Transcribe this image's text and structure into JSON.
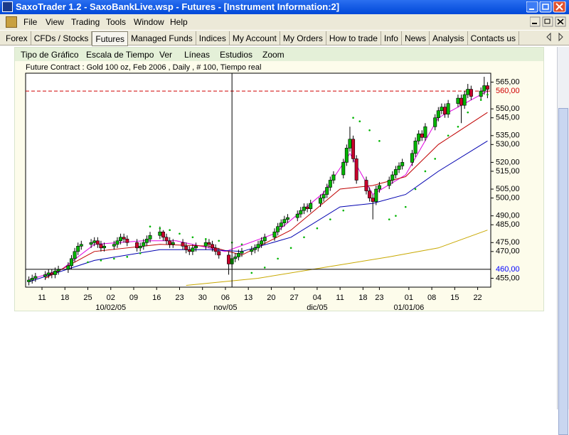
{
  "window": {
    "title": "SaxoTrader 1.2 - SaxoBankLive.wsp - Futures - [Instrument Information:2]"
  },
  "menu": [
    "File",
    "View",
    "Trading",
    "Tools",
    "Window",
    "Help"
  ],
  "tabs": [
    "Forex",
    "CFDs / Stocks",
    "Futures",
    "Managed Funds",
    "Indices",
    "My Account",
    "My Orders",
    "How to trade",
    "Info",
    "News",
    "Analysis",
    "Contacts us"
  ],
  "selected_tab": "Futures",
  "chart_menu": [
    "Tipo de Gráfico",
    "Escala de Tiempo",
    "Ver",
    "Líneas",
    "Estudios",
    "Zoom"
  ],
  "chart_data": {
    "type": "candlestick",
    "title": "Future Contract : Gold 100 oz, Feb 2006 , Daily , # 100, Tiempo real",
    "up_color": "#00b400",
    "down_color": "#c8002c",
    "x": [
      0,
      1,
      2,
      5,
      6,
      7,
      8,
      9,
      12,
      13,
      14,
      15,
      16,
      19,
      20,
      21,
      22,
      23,
      26,
      27,
      28,
      29,
      30,
      33,
      34,
      35,
      36,
      37,
      40,
      41,
      42,
      43,
      44,
      47,
      48,
      49,
      50,
      51,
      54,
      55,
      56,
      57,
      58,
      61,
      62,
      63,
      64,
      65,
      68,
      69,
      70,
      71,
      72,
      75,
      76,
      77,
      78,
      79,
      82,
      83,
      84,
      85,
      86,
      89,
      90,
      91,
      92,
      93,
      96,
      97,
      98,
      99,
      100,
      103,
      104,
      105,
      106,
      107,
      110,
      111,
      112,
      113,
      114,
      117,
      118,
      119,
      120,
      121,
      124,
      125,
      126,
      127,
      128,
      131,
      132,
      133,
      134,
      135,
      138,
      139,
      140
    ],
    "open": [
      453,
      454,
      455,
      456,
      457,
      458,
      457,
      459,
      460,
      462,
      466,
      470,
      473,
      474,
      475,
      476,
      474,
      472,
      473,
      474,
      476,
      478,
      477,
      475,
      472,
      473,
      475,
      477,
      479,
      481,
      478,
      476,
      474,
      475,
      473,
      471,
      470,
      472,
      473,
      475,
      474,
      472,
      470,
      468,
      463,
      466,
      467,
      469,
      470,
      471,
      472,
      474,
      476,
      478,
      481,
      484,
      486,
      488,
      489,
      491,
      493,
      495,
      494,
      497,
      500,
      502,
      506,
      510,
      513,
      520,
      528,
      533,
      522,
      510,
      504,
      500,
      498,
      505,
      507,
      510,
      513,
      516,
      518,
      520,
      525,
      532,
      536,
      534,
      540,
      545,
      549,
      551,
      547,
      553,
      556,
      552,
      558,
      561,
      557,
      560,
      563
    ],
    "high": [
      456,
      457,
      458,
      459,
      460,
      460,
      461,
      462,
      464,
      468,
      472,
      475,
      476,
      477,
      478,
      478,
      476,
      475,
      476,
      478,
      480,
      480,
      479,
      477,
      475,
      477,
      479,
      481,
      484,
      482,
      480,
      478,
      477,
      477,
      475,
      473,
      474,
      475,
      477,
      477,
      476,
      474,
      472,
      470,
      468,
      469,
      471,
      472,
      473,
      474,
      476,
      478,
      480,
      483,
      486,
      488,
      490,
      491,
      493,
      495,
      497,
      497,
      499,
      502,
      504,
      508,
      512,
      515,
      522,
      530,
      540,
      535,
      524,
      512,
      506,
      502,
      507,
      509,
      512,
      515,
      518,
      520,
      522,
      527,
      534,
      538,
      538,
      542,
      547,
      551,
      553,
      553,
      555,
      558,
      558,
      560,
      564,
      563,
      562,
      568,
      565
    ],
    "low": [
      451,
      452,
      453,
      454,
      455,
      455,
      455,
      457,
      458,
      460,
      464,
      468,
      471,
      472,
      473,
      472,
      470,
      470,
      471,
      472,
      474,
      475,
      473,
      470,
      470,
      471,
      473,
      475,
      477,
      476,
      474,
      472,
      472,
      471,
      469,
      468,
      468,
      470,
      471,
      472,
      470,
      468,
      466,
      457,
      461,
      464,
      465,
      467,
      468,
      469,
      470,
      472,
      474,
      476,
      479,
      482,
      484,
      486,
      487,
      489,
      491,
      492,
      492,
      495,
      498,
      500,
      504,
      508,
      511,
      518,
      526,
      520,
      508,
      502,
      498,
      488,
      496,
      503,
      505,
      508,
      511,
      514,
      516,
      518,
      523,
      530,
      532,
      532,
      538,
      543,
      547,
      545,
      545,
      551,
      542,
      550,
      556,
      555,
      555,
      558,
      556
    ],
    "close": [
      454,
      455,
      456,
      457,
      458,
      457,
      459,
      460,
      462,
      466,
      470,
      473,
      474,
      475,
      476,
      474,
      472,
      473,
      474,
      476,
      478,
      477,
      475,
      472,
      473,
      475,
      477,
      479,
      481,
      478,
      476,
      474,
      475,
      473,
      471,
      470,
      472,
      473,
      475,
      474,
      472,
      470,
      468,
      463,
      466,
      467,
      469,
      470,
      471,
      472,
      474,
      476,
      478,
      481,
      484,
      486,
      488,
      489,
      491,
      493,
      495,
      494,
      497,
      500,
      502,
      506,
      510,
      513,
      520,
      528,
      533,
      522,
      510,
      504,
      500,
      498,
      505,
      507,
      510,
      513,
      516,
      518,
      520,
      525,
      532,
      536,
      534,
      540,
      545,
      549,
      551,
      547,
      553,
      556,
      552,
      558,
      561,
      557,
      560,
      563,
      561
    ],
    "indicators": [
      {
        "color": "#e000e0",
        "x": [
          0,
          10,
          20,
          35,
          45,
          60,
          75,
          90,
          98,
          105,
          115,
          125,
          140
        ],
        "values": [
          454,
          460,
          474,
          476,
          476,
          470,
          480,
          503,
          525,
          502,
          513,
          545,
          560
        ]
      },
      {
        "color": "#c00000",
        "x": [
          5,
          20,
          40,
          55,
          65,
          80,
          95,
          105,
          115,
          125,
          140
        ],
        "values": [
          455,
          470,
          474,
          473,
          468,
          482,
          505,
          507,
          512,
          530,
          548
        ]
      },
      {
        "color": "#0000b0",
        "x": [
          0,
          20,
          40,
          55,
          65,
          80,
          95,
          105,
          115,
          125,
          140
        ],
        "values": [
          453,
          465,
          471,
          471,
          470,
          478,
          495,
          497,
          502,
          515,
          532
        ]
      },
      {
        "color": "#c8a800",
        "x": [
          48,
          70,
          90,
          110,
          125,
          140
        ],
        "values": [
          451,
          455,
          461,
          467,
          472,
          482
        ]
      }
    ],
    "sar": {
      "color": "#00b400",
      "x": [
        18,
        22,
        26,
        30,
        34,
        37,
        40,
        43,
        46,
        50,
        54,
        58,
        62,
        65,
        68,
        72,
        76,
        80,
        84,
        88,
        92,
        96,
        99,
        101,
        104,
        107,
        110,
        112,
        115,
        118,
        121,
        124,
        128,
        131,
        134,
        138,
        140
      ],
      "values": [
        464,
        465,
        466,
        467,
        469,
        484,
        483,
        482,
        480,
        478,
        477,
        476,
        475,
        474,
        458,
        461,
        466,
        472,
        478,
        483,
        488,
        493,
        545,
        543,
        538,
        532,
        488,
        490,
        495,
        505,
        515,
        522,
        535,
        540,
        548,
        555,
        558
      ]
    },
    "xlim": [
      -1,
      141
    ],
    "ylim": [
      450,
      570
    ],
    "xticks": [
      {
        "value": 4,
        "label": "11"
      },
      {
        "value": 11,
        "label": "18"
      },
      {
        "value": 18,
        "label": "25"
      },
      {
        "value": 25,
        "label": "02"
      },
      {
        "value": 32,
        "label": "09"
      },
      {
        "value": 39,
        "label": "16"
      },
      {
        "value": 46,
        "label": "23"
      },
      {
        "value": 53,
        "label": "30"
      },
      {
        "value": 60,
        "label": "06"
      },
      {
        "value": 67,
        "label": "13"
      },
      {
        "value": 74,
        "label": "20"
      },
      {
        "value": 81,
        "label": "27"
      },
      {
        "value": 88,
        "label": "04"
      },
      {
        "value": 95,
        "label": "11"
      },
      {
        "value": 102,
        "label": "18"
      },
      {
        "value": 107,
        "label": "23"
      },
      {
        "value": 116,
        "label": "01"
      },
      {
        "value": 123,
        "label": "08"
      },
      {
        "value": 130,
        "label": "15"
      },
      {
        "value": 137,
        "label": "22"
      }
    ],
    "xticks_secondary": [
      {
        "value": 25,
        "label": "10/02/05"
      },
      {
        "value": 60,
        "label": "nov/05"
      },
      {
        "value": 88,
        "label": "dic/05"
      },
      {
        "value": 116,
        "label": "01/01/06"
      }
    ],
    "yticks": [
      {
        "value": 565,
        "label": "565,00"
      },
      {
        "value": 550,
        "label": "550,00"
      },
      {
        "value": 545,
        "label": "545,00"
      },
      {
        "value": 535,
        "label": "535,00"
      },
      {
        "value": 530,
        "label": "530,00"
      },
      {
        "value": 520,
        "label": "520,00"
      },
      {
        "value": 515,
        "label": "515,00"
      },
      {
        "value": 505,
        "label": "505,00"
      },
      {
        "value": 500,
        "label": "500,00"
      },
      {
        "value": 490,
        "label": "490,00"
      },
      {
        "value": 485,
        "label": "485,00"
      },
      {
        "value": 475,
        "label": "475,00"
      },
      {
        "value": 470,
        "label": "470,00"
      },
      {
        "value": 455,
        "label": "455,00"
      }
    ],
    "price_line": {
      "value": 560,
      "label": "560,00",
      "color": "#d00000"
    },
    "crosshair": {
      "x": 62,
      "y": {
        "value": 460,
        "label": "460,00"
      },
      "color": "#000000",
      "label_color": "#0000ff"
    }
  }
}
